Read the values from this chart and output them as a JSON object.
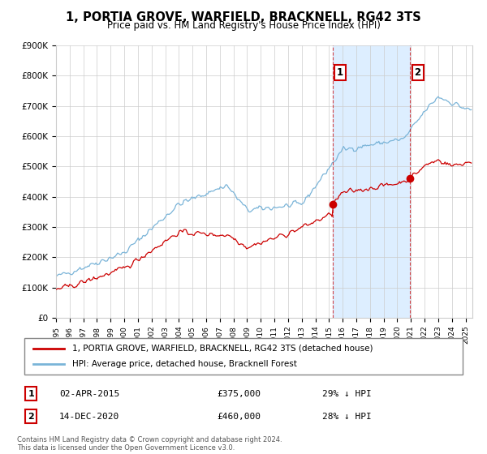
{
  "title": "1, PORTIA GROVE, WARFIELD, BRACKNELL, RG42 3TS",
  "subtitle": "Price paid vs. HM Land Registry's House Price Index (HPI)",
  "ylim": [
    0,
    900000
  ],
  "yticks": [
    0,
    100000,
    200000,
    300000,
    400000,
    500000,
    600000,
    700000,
    800000,
    900000
  ],
  "ytick_labels": [
    "£0",
    "£100K",
    "£200K",
    "£300K",
    "£400K",
    "£500K",
    "£600K",
    "£700K",
    "£800K",
    "£900K"
  ],
  "hpi_color": "#7ab4d8",
  "price_color": "#cc0000",
  "legend_label1": "1, PORTIA GROVE, WARFIELD, BRACKNELL, RG42 3TS (detached house)",
  "legend_label2": "HPI: Average price, detached house, Bracknell Forest",
  "footer": "Contains HM Land Registry data © Crown copyright and database right 2024.\nThis data is licensed under the Open Government Licence v3.0.",
  "background_color": "#ffffff",
  "grid_color": "#cccccc",
  "sale1_year": 2015.25,
  "sale1_y": 375000,
  "sale2_year": 2020.95,
  "sale2_y": 460000,
  "xlim_start": 1995.0,
  "xlim_end": 2025.5,
  "shade_color": "#ddeeff",
  "hatch_color": "#cccccc",
  "row1_text": "02-APR-2015",
  "row1_price": "£375,000",
  "row1_hpi": "29% ↓ HPI",
  "row2_text": "14-DEC-2020",
  "row2_price": "£460,000",
  "row2_hpi": "28% ↓ HPI"
}
